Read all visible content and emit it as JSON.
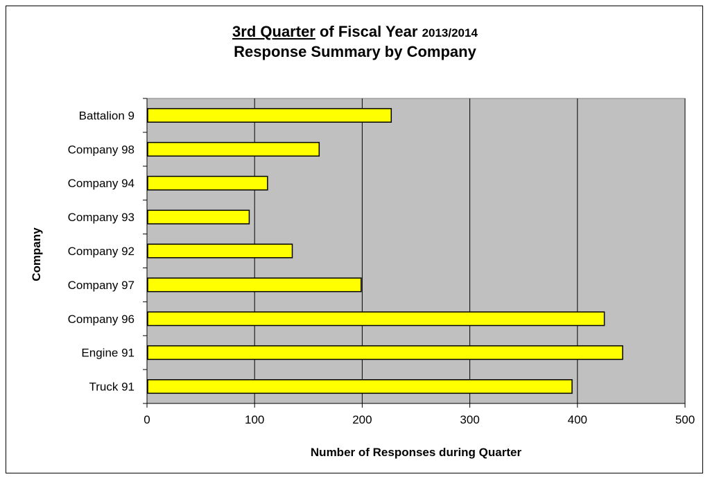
{
  "title": {
    "part1_underlined": "3rd Quarter",
    "part2": " of Fiscal Year ",
    "part3_small": "2013/2014",
    "line2": "Response Summary by Company"
  },
  "chart_data": {
    "type": "bar",
    "orientation": "horizontal",
    "categories": [
      "Battalion 9",
      "Company 98",
      "Company 94",
      "Company 93",
      "Company 92",
      "Company 97",
      "Company 96",
      "Engine 91",
      "Truck 91"
    ],
    "values": [
      227,
      160,
      112,
      95,
      135,
      199,
      425,
      442,
      395
    ],
    "xlabel": "Number of Responses during Quarter",
    "ylabel": "Company",
    "xlim": [
      0,
      500
    ],
    "xticks": [
      0,
      100,
      200,
      300,
      400,
      500
    ],
    "grid": "vertical",
    "colors": {
      "bar": "#ffff00",
      "bar_border": "#000000",
      "plot_bg": "#c0c0c0"
    }
  }
}
